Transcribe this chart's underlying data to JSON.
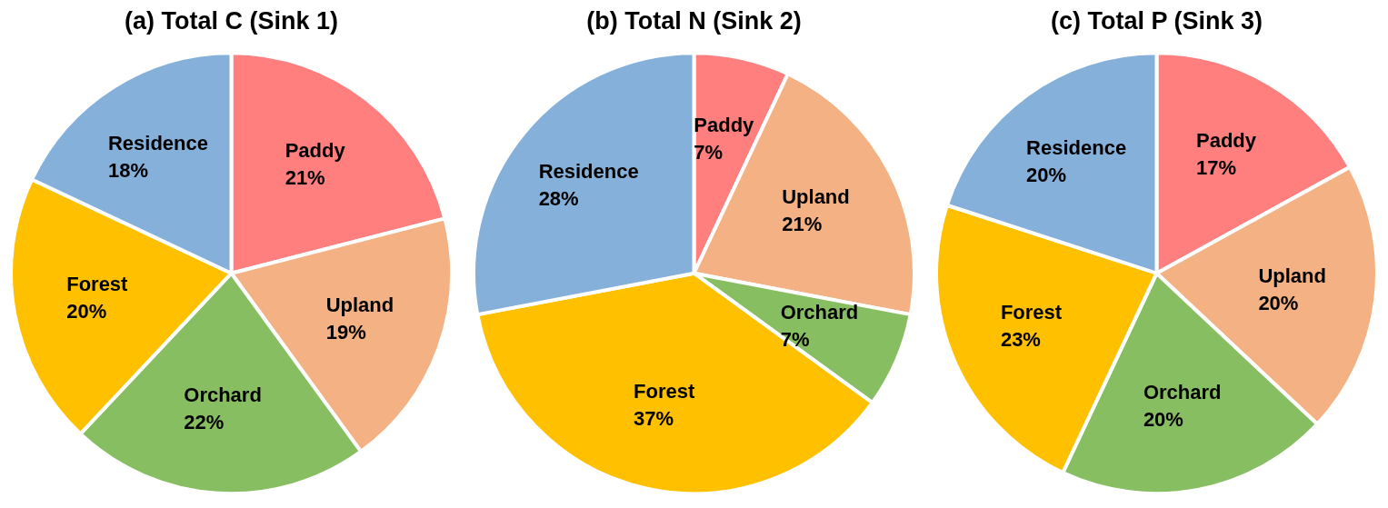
{
  "chart_data": [
    {
      "type": "pie",
      "title": "(a) Total C (Sink 1)",
      "categories": [
        "Paddy",
        "Upland",
        "Orchard",
        "Forest",
        "Residence"
      ],
      "values": [
        21,
        19,
        22,
        20,
        18
      ],
      "value_labels": [
        "21%",
        "19%",
        "22%",
        "20%",
        "18%"
      ],
      "colors": [
        "#ff7f7f",
        "#f4b183",
        "#88be62",
        "#ffc000",
        "#85b0da"
      ],
      "legend": false
    },
    {
      "type": "pie",
      "title": "(b) Total N (Sink 2)",
      "categories": [
        "Paddy",
        "Upland",
        "Orchard",
        "Forest",
        "Residence"
      ],
      "values": [
        7,
        21,
        7,
        37,
        28
      ],
      "value_labels": [
        "7%",
        "21%",
        "7%",
        "37%",
        "28%"
      ],
      "colors": [
        "#ff7f7f",
        "#f4b183",
        "#88be62",
        "#ffc000",
        "#85b0da"
      ],
      "legend": false
    },
    {
      "type": "pie",
      "title": "(c) Total P (Sink 3)",
      "categories": [
        "Paddy",
        "Upland",
        "Orchard",
        "Forest",
        "Residence"
      ],
      "values": [
        17,
        20,
        20,
        23,
        20
      ],
      "value_labels": [
        "17%",
        "20%",
        "20%",
        "23%",
        "20%"
      ],
      "colors": [
        "#ff7f7f",
        "#f4b183",
        "#88be62",
        "#ffc000",
        "#85b0da"
      ],
      "legend": false
    }
  ]
}
